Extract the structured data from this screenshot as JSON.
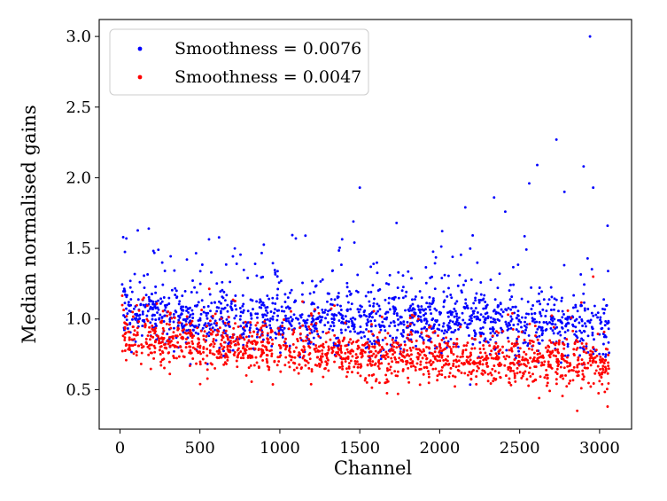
{
  "chart_data": {
    "type": "scatter",
    "title": "",
    "xlabel": "Channel",
    "ylabel": "Median normalised gains",
    "xlim": [
      -130,
      3200
    ],
    "ylim": [
      0.22,
      3.12
    ],
    "xticks": [
      0,
      500,
      1000,
      1500,
      2000,
      2500,
      3000
    ],
    "yticks": [
      0.5,
      1.0,
      1.5,
      2.0,
      2.5,
      3.0
    ],
    "xtick_labels": [
      "0",
      "500",
      "1000",
      "1500",
      "2000",
      "2500",
      "3000"
    ],
    "ytick_labels": [
      "0.5",
      "1.0",
      "1.5",
      "2.0",
      "2.5",
      "3.0"
    ],
    "grid": false,
    "legend_position": "top-left",
    "x_range": [
      10,
      3060
    ],
    "series": [
      {
        "name": "Smoothness = 0.0076",
        "color": "#0000ff",
        "trend": [
          {
            "x": 10,
            "y": 1.08
          },
          {
            "x": 500,
            "y": 1.0
          },
          {
            "x": 1000,
            "y": 0.98
          },
          {
            "x": 1500,
            "y": 1.0
          },
          {
            "x": 2000,
            "y": 0.98
          },
          {
            "x": 2500,
            "y": 0.98
          },
          {
            "x": 3060,
            "y": 0.96
          }
        ],
        "spread": 0.11,
        "count": 1500,
        "outliers": [
          {
            "x": 40,
            "y": 1.57
          },
          {
            "x": 180,
            "y": 1.64
          },
          {
            "x": 240,
            "y": 1.49
          },
          {
            "x": 1100,
            "y": 1.57
          },
          {
            "x": 1160,
            "y": 1.59
          },
          {
            "x": 1460,
            "y": 1.69
          },
          {
            "x": 1500,
            "y": 1.93
          },
          {
            "x": 1730,
            "y": 1.68
          },
          {
            "x": 2160,
            "y": 1.79
          },
          {
            "x": 2340,
            "y": 1.86
          },
          {
            "x": 2410,
            "y": 1.76
          },
          {
            "x": 2560,
            "y": 1.96
          },
          {
            "x": 2610,
            "y": 2.09
          },
          {
            "x": 2730,
            "y": 2.27
          },
          {
            "x": 2780,
            "y": 1.9
          },
          {
            "x": 2900,
            "y": 2.08
          },
          {
            "x": 2940,
            "y": 3.0
          },
          {
            "x": 2960,
            "y": 1.93
          },
          {
            "x": 3050,
            "y": 1.66
          }
        ]
      },
      {
        "name": "Smoothness = 0.0047",
        "color": "#ff0000",
        "trend": [
          {
            "x": 10,
            "y": 0.87
          },
          {
            "x": 500,
            "y": 0.82
          },
          {
            "x": 1000,
            "y": 0.78
          },
          {
            "x": 1500,
            "y": 0.74
          },
          {
            "x": 2000,
            "y": 0.71
          },
          {
            "x": 2500,
            "y": 0.7
          },
          {
            "x": 3060,
            "y": 0.69
          }
        ],
        "spread": 0.085,
        "count": 1500,
        "outliers": [
          {
            "x": 2860,
            "y": 0.35
          },
          {
            "x": 3050,
            "y": 0.38
          },
          {
            "x": 2960,
            "y": 1.3
          }
        ]
      }
    ]
  }
}
